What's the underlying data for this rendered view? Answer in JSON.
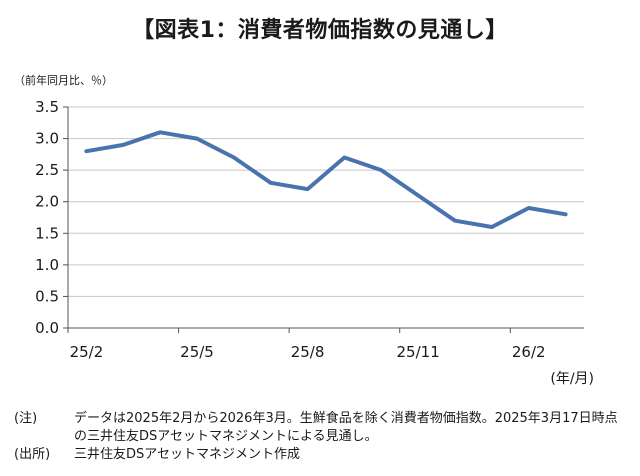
{
  "title": "【図表1：消費者物価指数の見通し】",
  "chart_data": {
    "type": "line",
    "y_unit_label": "（前年同月比、％）",
    "x_unit_label": "(年/月)",
    "ylim": [
      0,
      3.5
    ],
    "yticks": [
      "3.5",
      "3.0",
      "2.5",
      "2.0",
      "1.5",
      "1.0",
      "0.5",
      "0.0"
    ],
    "ytick_values": [
      3.5,
      3.0,
      2.5,
      2.0,
      1.5,
      1.0,
      0.5,
      0.0
    ],
    "x_tick_labels": [
      "25/2",
      "25/5",
      "25/8",
      "25/11",
      "26/2"
    ],
    "x_tick_indices": [
      0,
      3,
      6,
      9,
      12
    ],
    "categories": [
      "25/2",
      "25/3",
      "25/4",
      "25/5",
      "25/6",
      "25/7",
      "25/8",
      "25/9",
      "25/10",
      "25/11",
      "25/12",
      "26/1",
      "26/2",
      "26/3"
    ],
    "series": [
      {
        "values": [
          2.8,
          2.9,
          3.1,
          3.0,
          2.7,
          2.3,
          2.2,
          2.7,
          2.5,
          2.1,
          1.7,
          1.6,
          1.9,
          1.8
        ]
      }
    ],
    "grid": true,
    "line_color": "#4A73AE"
  },
  "notes": [
    {
      "key": "(注)",
      "text": "データは2025年2月から2026年3月。生鮮食品を除く消費者物価指数。2025年3月17日時点の三井住友DSアセットマネジメントによる見通し。"
    },
    {
      "key": "(出所)",
      "text": "三井住友DSアセットマネジメント作成"
    }
  ]
}
